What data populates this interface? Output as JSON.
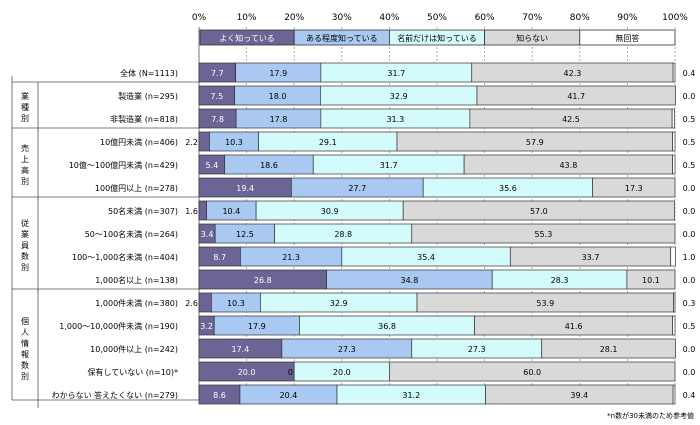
{
  "chart_data": {
    "type": "bar",
    "stacked": true,
    "orientation": "horizontal",
    "xlim": [
      0,
      100
    ],
    "x_ticks": [
      "0%",
      "10%",
      "20%",
      "30%",
      "40%",
      "50%",
      "60%",
      "70%",
      "80%",
      "90%",
      "100%"
    ],
    "grid": true,
    "legend_position": "top",
    "series": [
      {
        "name": "よく知っている",
        "color": "#6b6596",
        "text_color": "#ffffff"
      },
      {
        "name": "ある程度知っている",
        "color": "#a9c9f2",
        "text_color": "#000000"
      },
      {
        "name": "名前だけは知っている",
        "color": "#d4fbfb",
        "text_color": "#000000"
      },
      {
        "name": "知らない",
        "color": "#d9d9d9",
        "text_color": "#000000"
      },
      {
        "name": "無回答",
        "color": "#ffffff",
        "text_color": "#000000"
      }
    ],
    "groups": [
      {
        "label": "",
        "rows": [
          0
        ]
      },
      {
        "label": "業種別",
        "rows": [
          1,
          2
        ]
      },
      {
        "label": "売上高別",
        "rows": [
          3,
          4,
          5
        ]
      },
      {
        "label": "従業員数別",
        "rows": [
          6,
          7,
          8,
          9
        ]
      },
      {
        "label": "個人情報数別",
        "rows": [
          10,
          11,
          12,
          13,
          14
        ]
      }
    ],
    "rows": [
      {
        "label": "全体 (N=1113)",
        "values": [
          7.7,
          17.9,
          31.7,
          42.3,
          0.4
        ],
        "labels": [
          "7.7",
          "17.9",
          "31.7",
          "42.3",
          "0.4"
        ]
      },
      {
        "label": "製造業 (n=295)",
        "values": [
          7.5,
          18.0,
          32.9,
          41.7,
          0.0
        ],
        "labels": [
          "7.5",
          "18.0",
          "32.9",
          "41.7",
          "0.0"
        ]
      },
      {
        "label": "非製造業 (n=818)",
        "values": [
          7.8,
          17.8,
          31.3,
          42.5,
          0.5
        ],
        "labels": [
          "7.8",
          "17.8",
          "31.3",
          "42.5",
          "0.5"
        ]
      },
      {
        "label": "10億円未満 (n=406)",
        "values": [
          2.2,
          10.3,
          29.1,
          57.9,
          0.5
        ],
        "labels": [
          "2.2",
          "10.3",
          "29.1",
          "57.9",
          "0.5"
        ]
      },
      {
        "label": "10億～100億円未満 (n=429)",
        "values": [
          5.4,
          18.6,
          31.7,
          43.8,
          0.5
        ],
        "labels": [
          "5.4",
          "18.6",
          "31.7",
          "43.8",
          "0.5"
        ]
      },
      {
        "label": "100億円以上 (n=278)",
        "values": [
          19.4,
          27.7,
          35.6,
          17.3,
          0.0
        ],
        "labels": [
          "19.4",
          "27.7",
          "35.6",
          "17.3",
          "0.0"
        ]
      },
      {
        "label": "50名未満 (n=307)",
        "values": [
          1.6,
          10.4,
          30.9,
          57.0,
          0.0
        ],
        "labels": [
          "1.6",
          "10.4",
          "30.9",
          "57.0",
          "0.0"
        ]
      },
      {
        "label": "50～100名未満 (n=264)",
        "values": [
          3.4,
          12.5,
          28.8,
          55.3,
          0.0
        ],
        "labels": [
          "3.4",
          "12.5",
          "28.8",
          "55.3",
          "0.0"
        ]
      },
      {
        "label": "100～1,000名未満 (n=404)",
        "values": [
          8.7,
          21.3,
          35.4,
          33.7,
          1.0
        ],
        "labels": [
          "8.7",
          "21.3",
          "35.4",
          "33.7",
          "1.0"
        ]
      },
      {
        "label": "1,000名以上 (n=138)",
        "values": [
          26.8,
          34.8,
          28.3,
          10.1,
          0.0
        ],
        "labels": [
          "26.8",
          "34.8",
          "28.3",
          "10.1",
          "0.0"
        ]
      },
      {
        "label": "1,000件未満 (n=380)",
        "values": [
          2.6,
          10.3,
          32.9,
          53.9,
          0.3
        ],
        "labels": [
          "2.6",
          "10.3",
          "32.9",
          "53.9",
          "0.3"
        ]
      },
      {
        "label": "1,000～10,000件未満 (n=190)",
        "values": [
          3.2,
          17.9,
          36.8,
          41.6,
          0.5
        ],
        "labels": [
          "3.2",
          "17.9",
          "36.8",
          "41.6",
          "0.5"
        ]
      },
      {
        "label": "10,000件以上 (n=242)",
        "values": [
          17.4,
          27.3,
          27.3,
          28.1,
          0.0
        ],
        "labels": [
          "17.4",
          "27.3",
          "27.3",
          "28.1",
          "0.0"
        ]
      },
      {
        "label": "保有していない (n=10)*",
        "values": [
          20.0,
          0.0,
          20.0,
          60.0,
          0.0
        ],
        "labels": [
          "20.0",
          "0.0",
          "20.0",
          "60.0",
          "0.0"
        ]
      },
      {
        "label": "わからない 答えたくない (n=279)",
        "values": [
          8.6,
          20.4,
          31.2,
          39.4,
          0.4
        ],
        "labels": [
          "8.6",
          "20.4",
          "31.2",
          "39.4",
          "0.4"
        ]
      }
    ],
    "footnote": "*n数が30未満のため参考値"
  }
}
